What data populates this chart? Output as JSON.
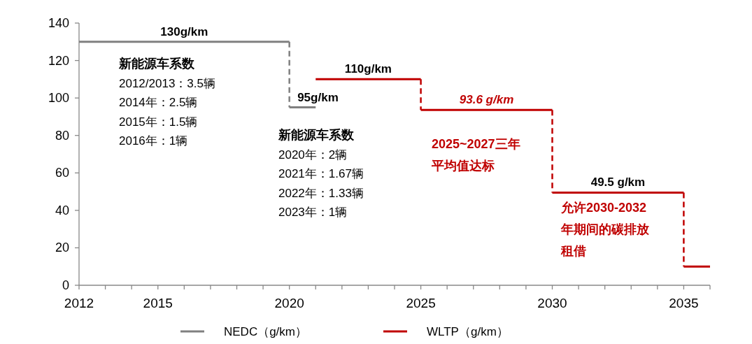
{
  "chart_data": {
    "type": "step",
    "xlim": [
      2012,
      2036
    ],
    "ylim": [
      0,
      140
    ],
    "yticks": [
      0,
      20,
      40,
      60,
      80,
      100,
      120,
      140
    ],
    "xticks": [
      2012,
      {
        "value": 2013,
        "label": null
      },
      {
        "value": 2014,
        "label": null
      },
      2015,
      {
        "value": 2016,
        "label": null
      },
      {
        "value": 2017,
        "label": null
      },
      {
        "value": 2018,
        "label": null
      },
      {
        "value": 2019,
        "label": null
      },
      2020,
      {
        "value": 2021,
        "label": null
      },
      {
        "value": 2022,
        "label": null
      },
      {
        "value": 2023,
        "label": null
      },
      {
        "value": 2024,
        "label": null
      },
      2025,
      {
        "value": 2026,
        "label": null
      },
      {
        "value": 2027,
        "label": null
      },
      {
        "value": 2028,
        "label": null
      },
      {
        "value": 2029,
        "label": null
      },
      2030,
      {
        "value": 2031,
        "label": null
      },
      {
        "value": 2032,
        "label": null
      },
      {
        "value": 2033,
        "label": null
      },
      {
        "value": 2034,
        "label": null
      },
      2035,
      {
        "value": 2036,
        "label": null
      }
    ],
    "series": [
      {
        "name": "NEDC（g/km）",
        "color": "#808080",
        "x": [
          2012,
          2020,
          2021
        ],
        "values": [
          130,
          95,
          95
        ]
      },
      {
        "name": "WLTP（g/km）",
        "color": "#c00000",
        "x": [
          2021,
          2025,
          2030,
          2035,
          2036
        ],
        "values": [
          110,
          93.6,
          49.5,
          10,
          10
        ]
      }
    ],
    "annotations": [
      {
        "text": "130g/km",
        "x": 2016,
        "y": 130
      },
      {
        "text": "95g/km",
        "x": 2020.5,
        "y": 95
      },
      {
        "text": "110g/km",
        "x": 2023,
        "y": 110
      },
      {
        "text": "93.6 g/km",
        "x": 2027.5,
        "y": 93.6
      },
      {
        "text": "49.5 g/km",
        "x": 2032.5,
        "y": 49.5
      },
      "新能源车系数\n2012/2013：3.5辆\n2014年：2.5辆\n2015年：1.5辆\n2016年：1辆",
      "新能源车系数\n2020年：2辆\n2021年：1.67辆\n2022年：1.33辆\n2023年：1辆",
      "2025~2027三年平均值达标",
      "允许2030-2032年期间的碳排放租借"
    ],
    "grid": false,
    "legend": "bottom",
    "marker": "none",
    "line_style": "solid"
  }
}
